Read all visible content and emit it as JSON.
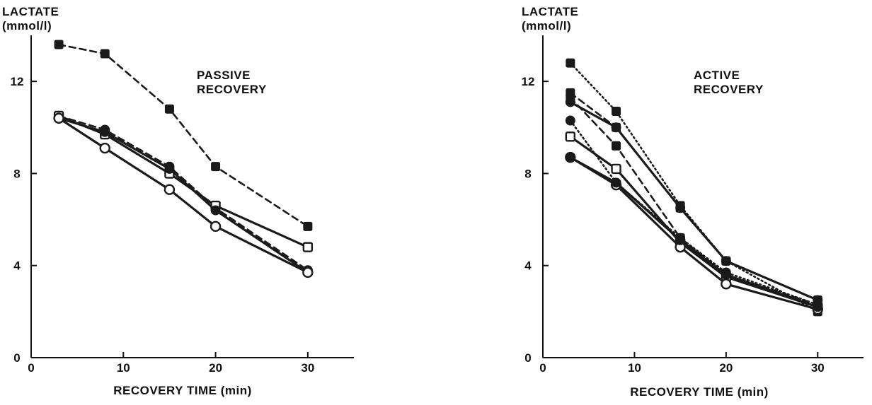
{
  "chart_data": [
    {
      "type": "line",
      "title": "PASSIVE\nRECOVERY",
      "ylabel": "LACTATE\n(mmol/l)",
      "xlabel": "RECOVERY TIME (min)",
      "xlim": [
        0,
        35
      ],
      "ylim": [
        0,
        14
      ],
      "xticks": [
        0,
        10,
        20,
        30
      ],
      "yticks": [
        0,
        4,
        8,
        12
      ],
      "grid": false,
      "series": [
        {
          "marker": "filled-square",
          "style": "dashed",
          "color": "#1a1a1a",
          "x": [
            3,
            8,
            15,
            20,
            30
          ],
          "y": [
            13.6,
            13.2,
            10.8,
            8.3,
            5.7
          ]
        },
        {
          "marker": "filled-circle",
          "style": "dashed",
          "color": "#1a1a1a",
          "x": [
            3,
            8,
            15,
            20,
            30
          ],
          "y": [
            10.5,
            9.9,
            8.3,
            6.5,
            3.8
          ]
        },
        {
          "marker": "open-square",
          "style": "solid",
          "color": "#1a1a1a",
          "x": [
            3,
            8,
            15,
            20,
            30
          ],
          "y": [
            10.5,
            9.7,
            8.0,
            6.6,
            4.8
          ]
        },
        {
          "marker": "filled-circle",
          "style": "solid",
          "color": "#1a1a1a",
          "x": [
            3,
            8,
            15,
            20,
            30
          ],
          "y": [
            10.4,
            9.8,
            8.2,
            6.4,
            3.7
          ]
        },
        {
          "marker": "open-circle",
          "style": "solid",
          "color": "#1a1a1a",
          "x": [
            3,
            8,
            15,
            20,
            30
          ],
          "y": [
            10.4,
            9.1,
            7.3,
            5.7,
            3.7
          ]
        }
      ]
    },
    {
      "type": "line",
      "title": "ACTIVE\nRECOVERY",
      "ylabel": "LACTATE\n(mmol/l)",
      "xlabel": "RECOVERY TIME (min)",
      "xlim": [
        0,
        35
      ],
      "ylim": [
        0,
        14
      ],
      "xticks": [
        0,
        10,
        20,
        30
      ],
      "yticks": [
        0,
        4,
        8,
        12
      ],
      "grid": false,
      "series": [
        {
          "marker": "filled-square",
          "style": "dotted",
          "color": "#1a1a1a",
          "x": [
            3,
            8,
            15,
            20,
            30
          ],
          "y": [
            12.8,
            10.7,
            6.6,
            4.2,
            2.0
          ]
        },
        {
          "marker": "filled-square",
          "style": "dashed",
          "color": "#1a1a1a",
          "x": [
            3,
            8,
            15,
            20,
            30
          ],
          "y": [
            11.5,
            10.0,
            6.5,
            4.2,
            2.5
          ]
        },
        {
          "marker": "filled-square",
          "style": "dashed",
          "color": "#1a1a1a",
          "x": [
            3,
            8,
            15,
            20,
            30
          ],
          "y": [
            11.3,
            9.2,
            5.2,
            3.6,
            2.3
          ]
        },
        {
          "marker": "filled-circle",
          "style": "solid",
          "color": "#1a1a1a",
          "x": [
            3,
            8,
            15,
            20,
            30
          ],
          "y": [
            11.1,
            10.0,
            6.5,
            4.2,
            2.5
          ]
        },
        {
          "marker": "filled-circle",
          "style": "dotted",
          "color": "#1a1a1a",
          "x": [
            3,
            8,
            15,
            20,
            30
          ],
          "y": [
            10.3,
            7.6,
            5.2,
            3.7,
            2.3
          ]
        },
        {
          "marker": "open-square",
          "style": "solid",
          "color": "#1a1a1a",
          "x": [
            3,
            8,
            15,
            20,
            30
          ],
          "y": [
            9.6,
            8.2,
            5.0,
            3.5,
            2.2
          ]
        },
        {
          "marker": "open-circle",
          "style": "solid",
          "color": "#1a1a1a",
          "x": [
            3,
            8,
            15,
            20,
            30
          ],
          "y": [
            8.7,
            7.5,
            4.8,
            3.2,
            2.1
          ]
        },
        {
          "marker": "filled-circle",
          "style": "solid",
          "color": "#1a1a1a",
          "x": [
            3,
            8,
            15,
            20,
            30
          ],
          "y": [
            8.7,
            7.6,
            5.1,
            3.6,
            2.2
          ]
        }
      ]
    }
  ]
}
